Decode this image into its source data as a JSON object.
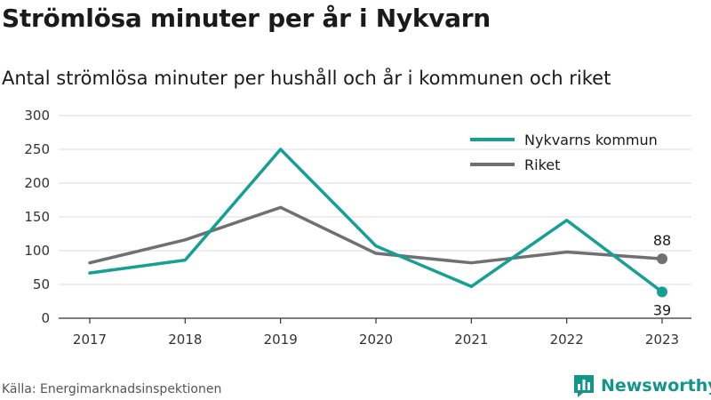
{
  "title": "Strömlösa minuter per år i Nykvarn",
  "subtitle": "Antal strömlösa minuter per hushåll och år i kommunen och riket",
  "source": "Källa: Energimarknadsinspektionen",
  "brand": {
    "name": "Newsworthy",
    "icon": "bar-chart-logo-icon",
    "color": "#14958a"
  },
  "chart_data": {
    "type": "line",
    "x": [
      "2017",
      "2018",
      "2019",
      "2020",
      "2021",
      "2022",
      "2023"
    ],
    "ylim": [
      0,
      300
    ],
    "yticks": [
      "0",
      "50",
      "100",
      "150",
      "200",
      "250",
      "300"
    ],
    "grid": true,
    "legend_position": "top-right",
    "series": [
      {
        "name": "Nykvarns kommun",
        "color": "#14a095",
        "values": [
          67,
          86,
          250,
          107,
          47,
          145,
          39
        ],
        "end_label": "39"
      },
      {
        "name": "Riket",
        "color": "#6f6f74",
        "values": [
          82,
          116,
          164,
          96,
          82,
          98,
          88
        ],
        "end_label": "88"
      }
    ]
  }
}
